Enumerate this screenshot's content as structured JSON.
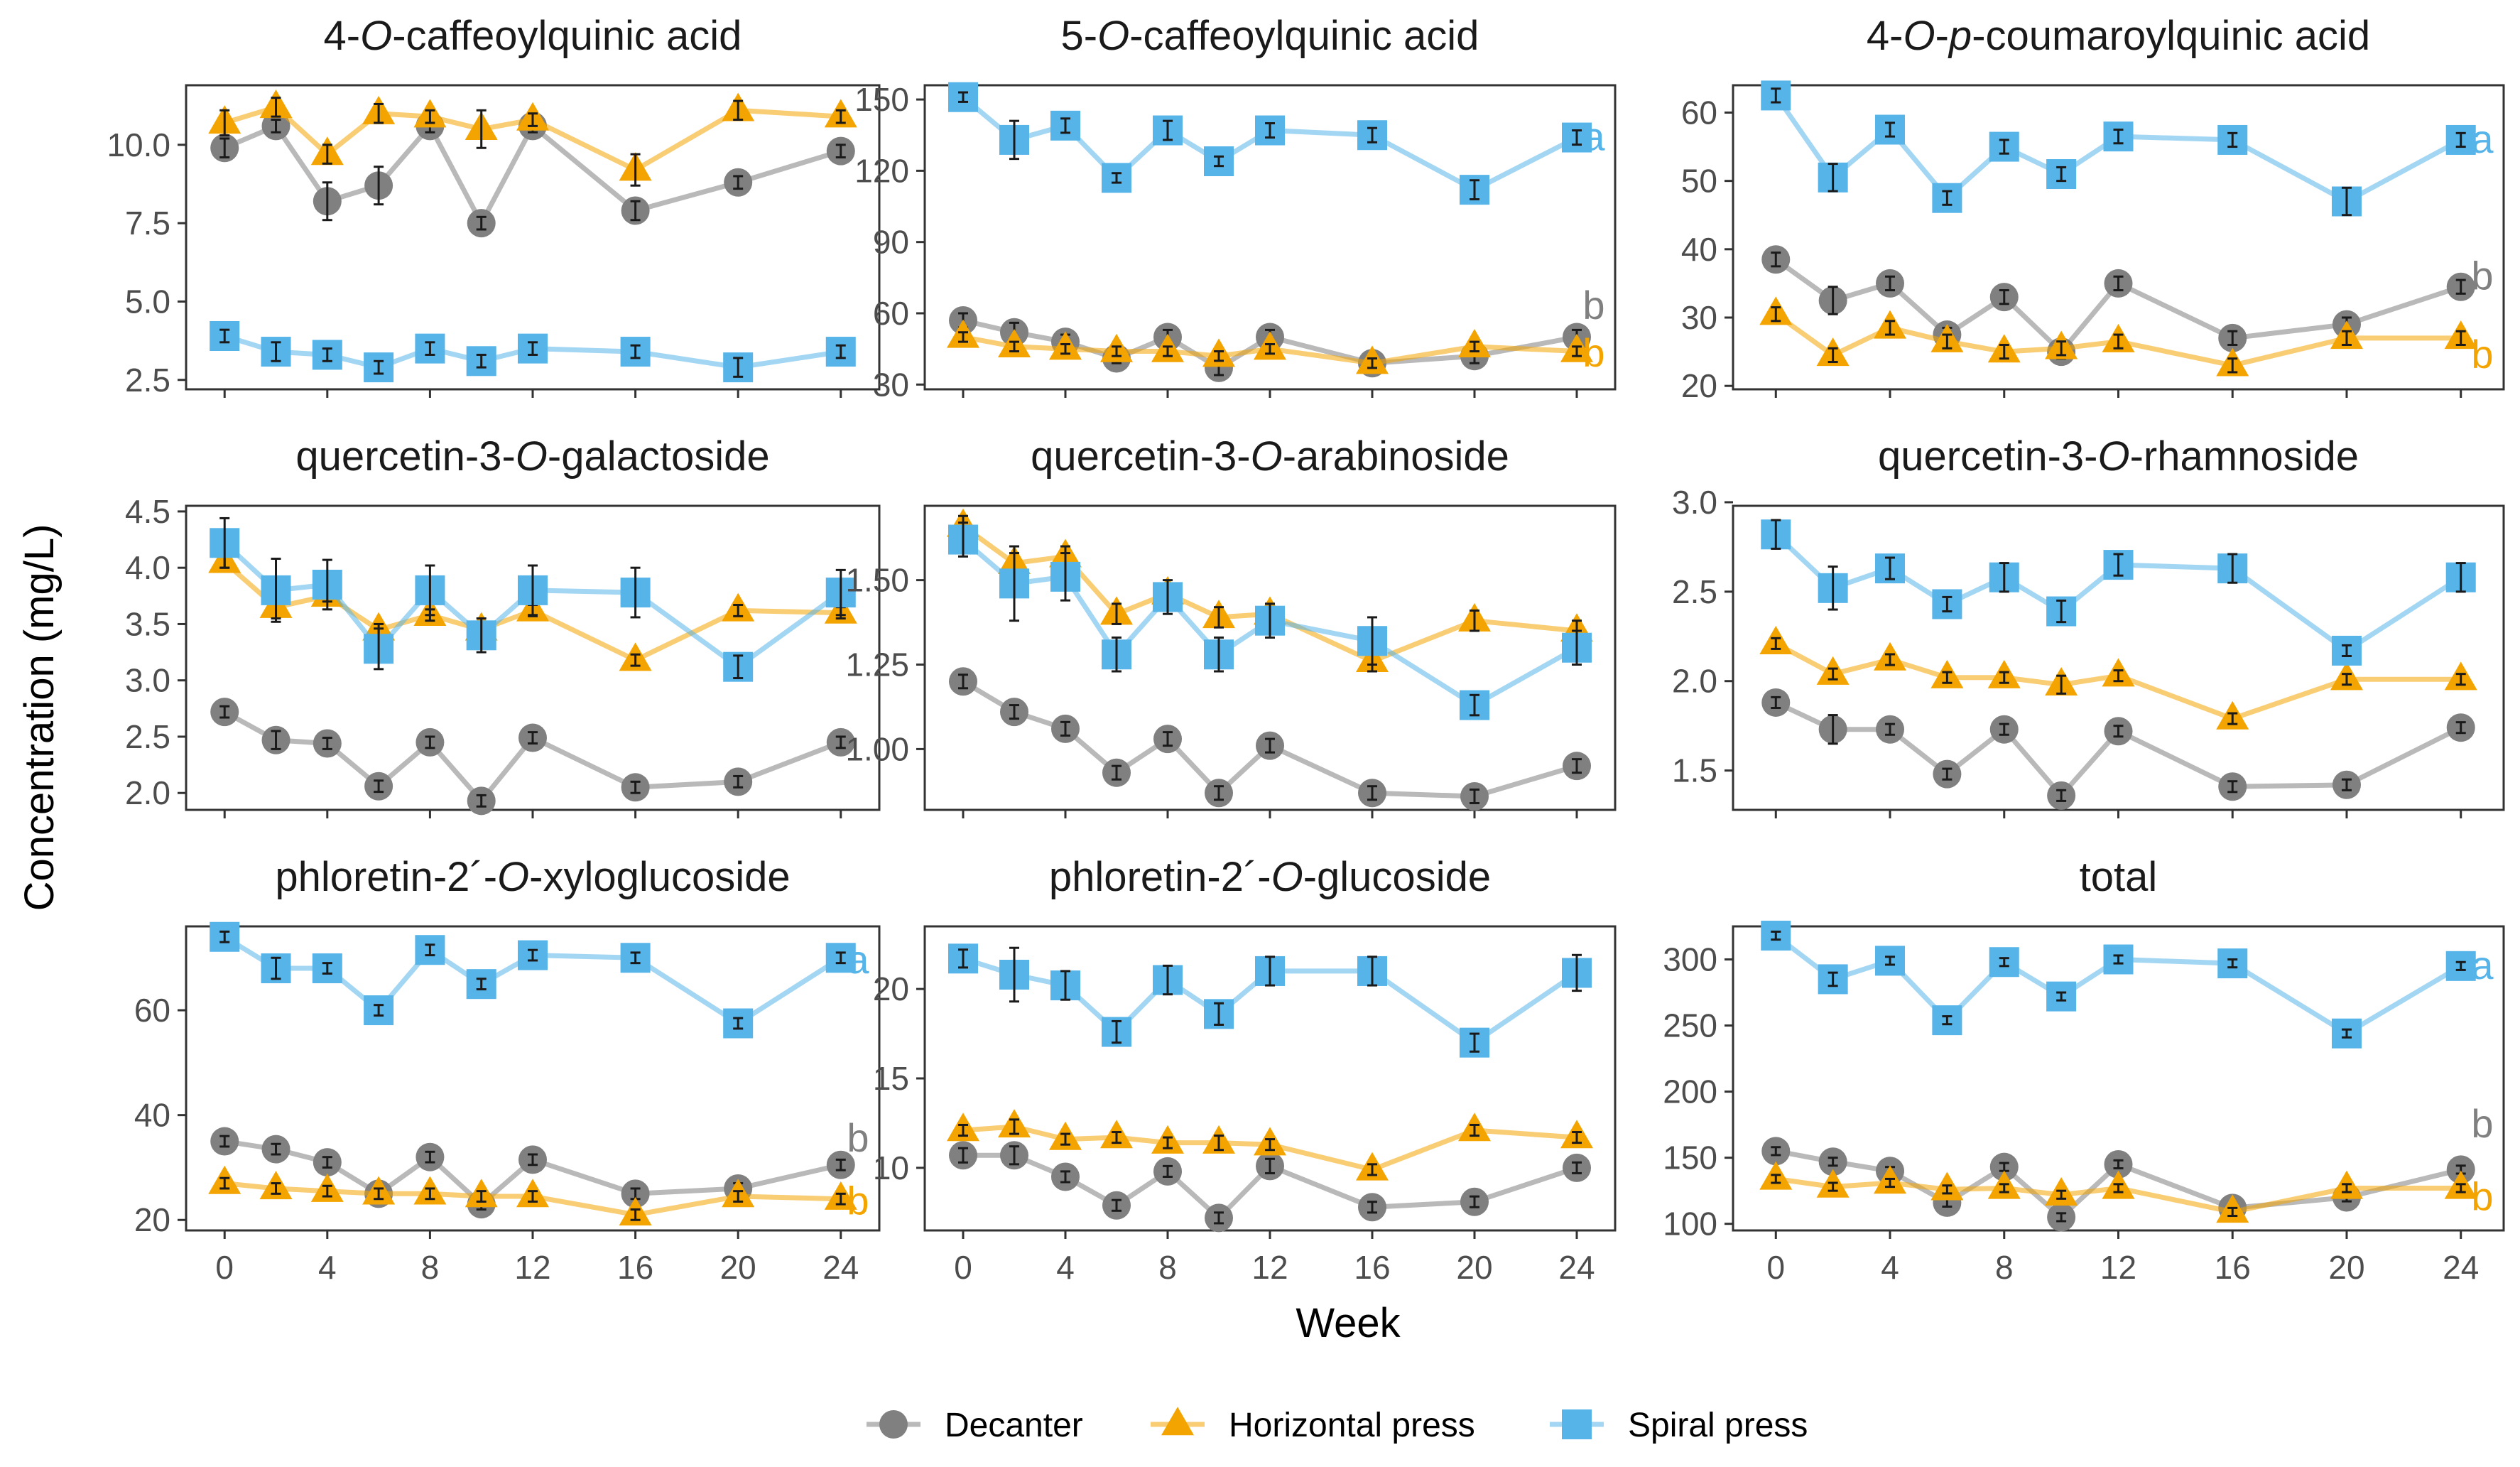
{
  "figure": {
    "ylabel": "Concentration (mg/L)",
    "xlabel": "Week",
    "legend": [
      {
        "name": "Decanter",
        "color": "#808080",
        "marker": "circle"
      },
      {
        "name": "Horizontal press",
        "color": "#F4A400",
        "marker": "triangle"
      },
      {
        "name": "Spiral press",
        "color": "#56B4E9",
        "marker": "square"
      }
    ],
    "xticks": [
      0,
      4,
      8,
      12,
      16,
      20,
      24
    ],
    "xlim": [
      -1.5,
      25.5
    ]
  },
  "chart_data": [
    {
      "type": "line",
      "title_parts": [
        "4-",
        "O",
        "-caffeoylquinic acid"
      ],
      "x": [
        0,
        2,
        4,
        6,
        8,
        10,
        12,
        16,
        20,
        24
      ],
      "ylim": [
        2.2,
        11.9
      ],
      "yticks": [
        "2.5",
        "5.0",
        "7.5",
        "10.0"
      ],
      "series": [
        {
          "name": "Decanter",
          "values": [
            9.9,
            10.6,
            8.2,
            8.7,
            10.6,
            7.5,
            10.6,
            7.9,
            8.8,
            9.8
          ],
          "err": [
            0.3,
            0.2,
            0.6,
            0.6,
            0.2,
            0.2,
            0.2,
            0.3,
            0.2,
            0.2
          ]
        },
        {
          "name": "Horizontal press",
          "values": [
            10.7,
            11.2,
            9.7,
            11.0,
            10.9,
            10.5,
            10.8,
            9.2,
            11.1,
            10.9
          ],
          "err": [
            0.4,
            0.3,
            0.3,
            0.3,
            0.2,
            0.6,
            0.2,
            0.5,
            0.3,
            0.2
          ]
        },
        {
          "name": "Spiral press",
          "values": [
            3.9,
            3.4,
            3.3,
            2.9,
            3.5,
            3.1,
            3.5,
            3.4,
            2.9,
            3.4
          ],
          "err": [
            0.2,
            0.3,
            0.2,
            0.2,
            0.2,
            0.2,
            0.2,
            0.2,
            0.3,
            0.2
          ]
        }
      ],
      "letters": []
    },
    {
      "type": "line",
      "title_parts": [
        "5-",
        "O",
        "-caffeoylquinic acid"
      ],
      "x": [
        0,
        2,
        4,
        6,
        8,
        10,
        12,
        16,
        20,
        24
      ],
      "ylim": [
        28,
        156
      ],
      "yticks": [
        "30",
        "60",
        "90",
        "120",
        "150"
      ],
      "series": [
        {
          "name": "Decanter",
          "values": [
            57,
            52,
            48,
            41,
            50,
            37,
            50,
            39,
            42,
            50
          ],
          "err": [
            3,
            4,
            3,
            2,
            3,
            3,
            3,
            2,
            3,
            3
          ]
        },
        {
          "name": "Horizontal press",
          "values": [
            50,
            46,
            45,
            44,
            44,
            42,
            45,
            39,
            46,
            44
          ],
          "err": [
            2,
            2,
            2,
            2,
            2,
            2,
            2,
            2,
            2,
            2
          ]
        },
        {
          "name": "Spiral press",
          "values": [
            151,
            133,
            139,
            117,
            137,
            124,
            137,
            135,
            112,
            134
          ],
          "err": [
            2,
            8,
            3,
            2,
            4,
            2,
            3,
            3,
            4,
            3
          ]
        }
      ],
      "letters": [
        {
          "text": "a",
          "value": 134,
          "color": "#56B4E9"
        },
        {
          "text": "b",
          "value": 63,
          "color": "#808080"
        },
        {
          "text": "b",
          "value": 43,
          "color": "#F4A400"
        }
      ]
    },
    {
      "type": "line",
      "title_parts": [
        "4-",
        "O",
        "-",
        "p",
        "-coumaroylquinic acid"
      ],
      "x": [
        0,
        2,
        4,
        6,
        8,
        10,
        12,
        16,
        20,
        24
      ],
      "ylim": [
        19.5,
        64
      ],
      "yticks": [
        "20",
        "30",
        "40",
        "50",
        "60"
      ],
      "series": [
        {
          "name": "Decanter",
          "values": [
            38.5,
            32.5,
            35,
            27.5,
            33,
            25,
            35,
            27,
            29,
            34.5
          ],
          "err": [
            1,
            2,
            1,
            1,
            1,
            1,
            1,
            1,
            1,
            1
          ]
        },
        {
          "name": "Horizontal press",
          "values": [
            30.5,
            24.5,
            28.5,
            26.5,
            25,
            25.5,
            26.5,
            23,
            27,
            27
          ],
          "err": [
            1,
            1,
            1,
            1,
            1,
            1,
            1,
            1,
            1,
            1
          ]
        },
        {
          "name": "Spiral press",
          "values": [
            62.5,
            50.5,
            57.5,
            47.5,
            55,
            51,
            56.5,
            56,
            47,
            56
          ],
          "err": [
            1,
            2,
            1,
            1,
            1,
            1,
            1,
            1,
            2,
            1
          ]
        }
      ],
      "letters": [
        {
          "text": "a",
          "value": 56,
          "color": "#56B4E9"
        },
        {
          "text": "b",
          "value": 36,
          "color": "#808080"
        },
        {
          "text": "b",
          "value": 24.5,
          "color": "#F4A400"
        }
      ]
    },
    {
      "type": "line",
      "title_parts": [
        "quercetin-3-",
        "O",
        "-galactoside"
      ],
      "x": [
        0,
        2,
        4,
        6,
        8,
        10,
        12,
        16,
        20,
        24
      ],
      "ylim": [
        1.85,
        4.55
      ],
      "yticks": [
        "2.0",
        "2.5",
        "3.0",
        "3.5",
        "4.0",
        "4.5"
      ],
      "series": [
        {
          "name": "Decanter",
          "values": [
            2.72,
            2.47,
            2.44,
            2.06,
            2.45,
            1.93,
            2.49,
            2.05,
            2.1,
            2.45
          ],
          "err": [
            0.05,
            0.08,
            0.05,
            0.05,
            0.05,
            0.05,
            0.05,
            0.05,
            0.05,
            0.05
          ]
        },
        {
          "name": "Horizontal press",
          "values": [
            4.05,
            3.65,
            3.75,
            3.45,
            3.58,
            3.45,
            3.62,
            3.18,
            3.62,
            3.6
          ],
          "err": [
            0.05,
            0.1,
            0.05,
            0.05,
            0.05,
            0.05,
            0.05,
            0.05,
            0.05,
            0.05
          ]
        },
        {
          "name": "Spiral press",
          "values": [
            4.22,
            3.8,
            3.85,
            3.28,
            3.8,
            3.4,
            3.8,
            3.78,
            3.12,
            3.78
          ],
          "err": [
            0.22,
            0.28,
            0.22,
            0.18,
            0.22,
            0.15,
            0.22,
            0.22,
            0.1,
            0.2
          ]
        }
      ],
      "letters": []
    },
    {
      "type": "line",
      "title_parts": [
        "quercetin-3-",
        "O",
        "-arabinoside"
      ],
      "x": [
        0,
        2,
        4,
        6,
        8,
        10,
        12,
        16,
        20,
        24
      ],
      "ylim": [
        0.82,
        1.72
      ],
      "yticks": [
        "1.00",
        "1.25",
        "1.50"
      ],
      "series": [
        {
          "name": "Decanter",
          "values": [
            1.2,
            1.11,
            1.06,
            0.93,
            1.03,
            0.87,
            1.01,
            0.87,
            0.86,
            0.95
          ],
          "err": [
            0.02,
            0.02,
            0.02,
            0.02,
            0.02,
            0.02,
            0.02,
            0.02,
            0.02,
            0.02
          ]
        },
        {
          "name": "Horizontal press",
          "values": [
            1.66,
            1.55,
            1.57,
            1.4,
            1.46,
            1.39,
            1.4,
            1.26,
            1.38,
            1.35
          ],
          "err": [
            0.03,
            0.03,
            0.03,
            0.03,
            0.03,
            0.03,
            0.03,
            0.03,
            0.03,
            0.03
          ]
        },
        {
          "name": "Spiral press",
          "values": [
            1.62,
            1.49,
            1.51,
            1.28,
            1.45,
            1.28,
            1.38,
            1.32,
            1.13,
            1.3
          ],
          "err": [
            0.05,
            0.11,
            0.07,
            0.05,
            0.05,
            0.05,
            0.05,
            0.07,
            0.03,
            0.05
          ]
        }
      ],
      "letters": []
    },
    {
      "type": "line",
      "title_parts": [
        "quercetin-3-",
        "O",
        "-rhamnoside"
      ],
      "x": [
        0,
        2,
        4,
        6,
        8,
        10,
        12,
        16,
        20,
        24
      ],
      "ylim": [
        1.28,
        2.98
      ],
      "yticks": [
        "1.5",
        "2.0",
        "2.5",
        "3.0"
      ],
      "series": [
        {
          "name": "Decanter",
          "values": [
            1.88,
            1.73,
            1.73,
            1.48,
            1.73,
            1.36,
            1.72,
            1.41,
            1.42,
            1.74
          ],
          "err": [
            0.03,
            0.08,
            0.03,
            0.03,
            0.03,
            0.03,
            0.03,
            0.03,
            0.03,
            0.03
          ]
        },
        {
          "name": "Horizontal press",
          "values": [
            2.21,
            2.04,
            2.12,
            2.02,
            2.02,
            1.98,
            2.03,
            1.79,
            2.01,
            2.01
          ],
          "err": [
            0.03,
            0.03,
            0.03,
            0.03,
            0.03,
            0.05,
            0.03,
            0.03,
            0.03,
            0.03
          ]
        },
        {
          "name": "Spiral press",
          "values": [
            2.82,
            2.52,
            2.63,
            2.43,
            2.58,
            2.39,
            2.65,
            2.63,
            2.17,
            2.58
          ],
          "err": [
            0.08,
            0.12,
            0.06,
            0.04,
            0.08,
            0.06,
            0.06,
            0.08,
            0.03,
            0.08
          ]
        }
      ],
      "letters": []
    },
    {
      "type": "line",
      "title_parts": [
        "phloretin-2´-",
        "O",
        "-xyloglucoside"
      ],
      "x": [
        0,
        2,
        4,
        6,
        8,
        10,
        12,
        16,
        20,
        24
      ],
      "ylim": [
        18,
        76
      ],
      "yticks": [
        "20",
        "40",
        "60"
      ],
      "series": [
        {
          "name": "Decanter",
          "values": [
            35,
            33.5,
            31,
            25,
            32,
            23,
            31.5,
            25,
            26,
            30.5
          ],
          "err": [
            1,
            1,
            1,
            1,
            1,
            1,
            1,
            1,
            1,
            1
          ]
        },
        {
          "name": "Horizontal press",
          "values": [
            27,
            26,
            25.5,
            25,
            25,
            24.5,
            24.5,
            21,
            24.5,
            24
          ],
          "err": [
            1,
            1,
            1,
            1,
            1,
            1,
            1,
            1,
            1,
            1
          ]
        },
        {
          "name": "Spiral press",
          "values": [
            74,
            68,
            68,
            60,
            71.5,
            65,
            70.5,
            70,
            57.5,
            70
          ],
          "err": [
            1,
            2,
            1,
            1,
            1,
            1,
            1,
            1,
            1,
            1
          ]
        }
      ],
      "letters": [
        {
          "text": "a",
          "value": 69.5,
          "color": "#56B4E9"
        },
        {
          "text": "b",
          "value": 35.5,
          "color": "#808080"
        },
        {
          "text": "b",
          "value": 23.5,
          "color": "#F4A400"
        }
      ]
    },
    {
      "type": "line",
      "title_parts": [
        "phloretin-2´-",
        "O",
        "-glucoside"
      ],
      "x": [
        0,
        2,
        4,
        6,
        8,
        10,
        12,
        16,
        20,
        24
      ],
      "ylim": [
        6.5,
        23.5
      ],
      "yticks": [
        "10",
        "15",
        "20"
      ],
      "series": [
        {
          "name": "Decanter",
          "values": [
            10.7,
            10.7,
            9.5,
            7.9,
            9.8,
            7.2,
            10.1,
            7.8,
            8.1,
            10.0
          ],
          "err": [
            0.4,
            0.5,
            0.3,
            0.3,
            0.3,
            0.3,
            0.4,
            0.3,
            0.3,
            0.3
          ]
        },
        {
          "name": "Horizontal press",
          "values": [
            12.1,
            12.3,
            11.6,
            11.7,
            11.4,
            11.4,
            11.3,
            9.9,
            12.1,
            11.7
          ],
          "err": [
            0.3,
            0.4,
            0.3,
            0.3,
            0.3,
            0.4,
            0.3,
            0.3,
            0.3,
            0.3
          ]
        },
        {
          "name": "Spiral press",
          "values": [
            21.7,
            20.8,
            20.2,
            17.6,
            20.5,
            18.6,
            21.0,
            21.0,
            17.0,
            20.9
          ],
          "err": [
            0.5,
            1.5,
            0.8,
            0.6,
            0.8,
            0.6,
            0.8,
            0.8,
            0.5,
            1.0
          ]
        }
      ],
      "letters": []
    },
    {
      "type": "line",
      "title_parts": [
        "total"
      ],
      "x": [
        0,
        2,
        4,
        6,
        8,
        10,
        12,
        16,
        20,
        24
      ],
      "ylim": [
        95,
        325
      ],
      "yticks": [
        "100",
        "150",
        "200",
        "250",
        "300"
      ],
      "series": [
        {
          "name": "Decanter",
          "values": [
            155,
            147,
            140,
            116,
            143,
            105,
            145,
            112,
            120,
            141
          ],
          "err": [
            3,
            3,
            3,
            3,
            3,
            3,
            3,
            3,
            3,
            3
          ]
        },
        {
          "name": "Horizontal press",
          "values": [
            134,
            128,
            131,
            126,
            127,
            122,
            127,
            109,
            127,
            127
          ],
          "err": [
            3,
            3,
            3,
            3,
            3,
            3,
            3,
            3,
            3,
            3
          ]
        },
        {
          "name": "Spiral press",
          "values": [
            318,
            285,
            299,
            254,
            298,
            272,
            300,
            297,
            244,
            295
          ],
          "err": [
            3,
            5,
            3,
            3,
            3,
            3,
            3,
            3,
            3,
            3
          ]
        }
      ],
      "letters": [
        {
          "text": "a",
          "value": 295,
          "color": "#56B4E9"
        },
        {
          "text": "b",
          "value": 175,
          "color": "#808080"
        },
        {
          "text": "b",
          "value": 120,
          "color": "#F4A400"
        }
      ]
    }
  ]
}
